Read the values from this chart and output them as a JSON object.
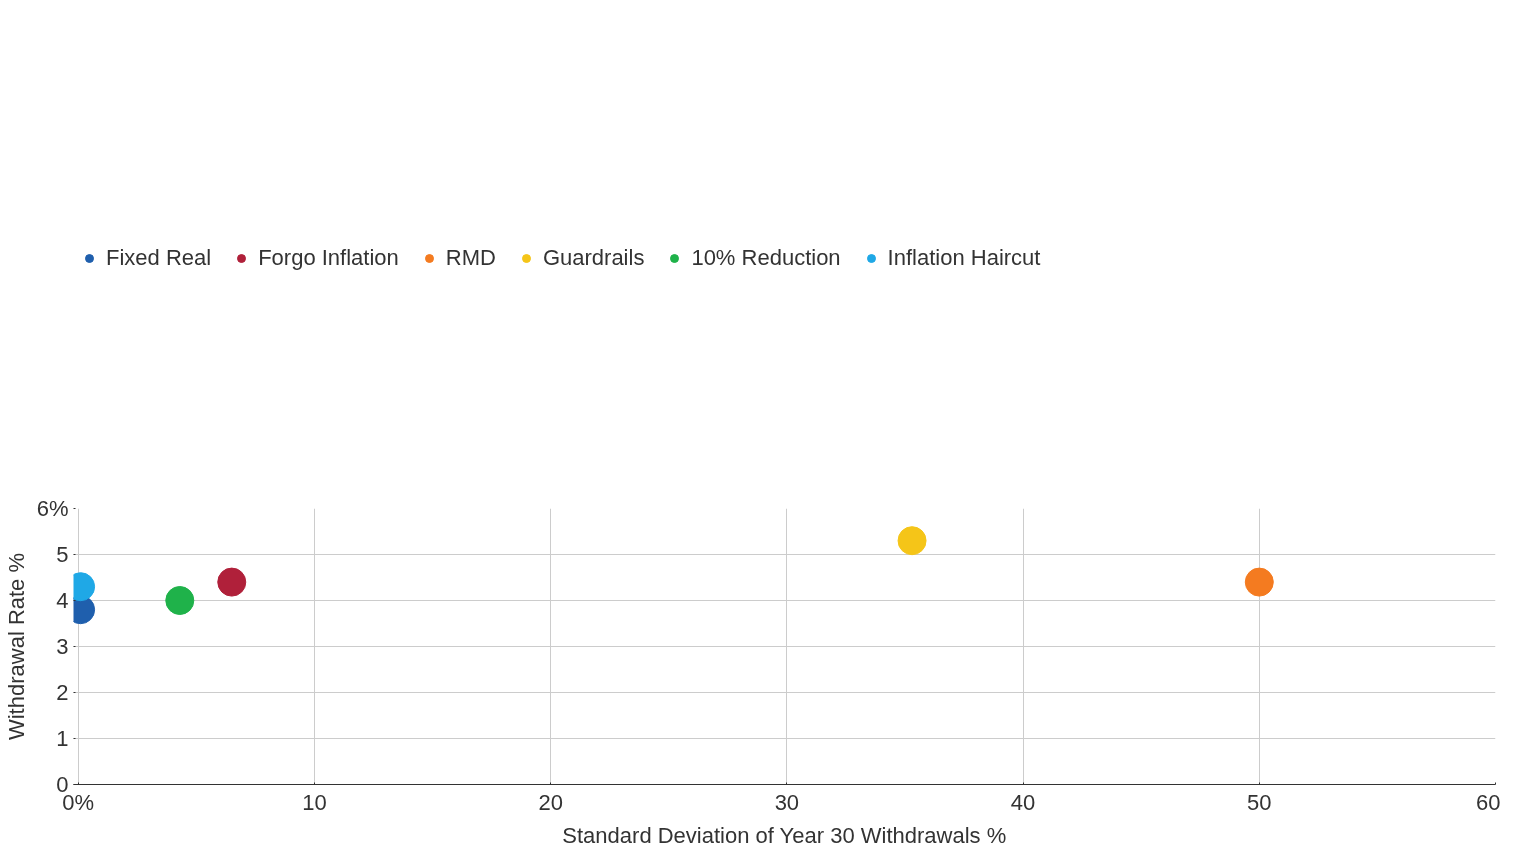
{
  "chart_data": {
    "type": "scatter",
    "xlabel": "Standard Deviation of Year 30 Withdrawals %",
    "ylabel": "Withdrawal Rate %",
    "series": [
      {
        "name": "Fixed Real",
        "color": "#1f5fad",
        "x": [
          0.1
        ],
        "values": [
          3.8
        ]
      },
      {
        "name": "Forgo Inflation",
        "color": "#b0203a",
        "x": [
          6.5
        ],
        "values": [
          4.4
        ]
      },
      {
        "name": "RMD",
        "color": "#f47b20",
        "x": [
          50
        ],
        "values": [
          4.4
        ]
      },
      {
        "name": "Guardrails",
        "color": "#f5c518",
        "x": [
          35.3
        ],
        "values": [
          5.3
        ]
      },
      {
        "name": "10% Reduction",
        "color": "#1fb24a",
        "x": [
          4.3
        ],
        "values": [
          4.0
        ]
      },
      {
        "name": "Inflation Haircut",
        "color": "#1fa8e6",
        "x": [
          0.1
        ],
        "values": [
          4.3
        ]
      }
    ],
    "xlim": [
      -0.2,
      60
    ],
    "ylim": [
      0,
      6
    ],
    "xticks": [
      {
        "value": 0,
        "label": "0%"
      },
      10,
      20,
      30,
      40,
      50,
      60
    ],
    "yticks": [
      0,
      1,
      2,
      3,
      4,
      5,
      {
        "value": 6,
        "label": "6%"
      }
    ],
    "grid": true,
    "legend": "top",
    "marker": "circle"
  }
}
